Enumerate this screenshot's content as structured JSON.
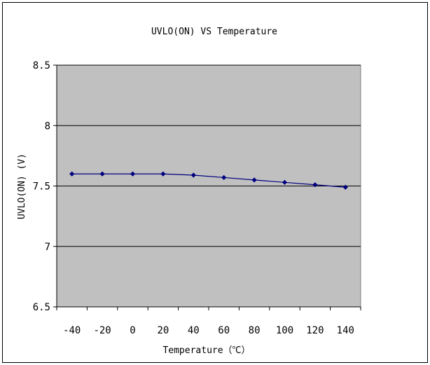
{
  "chart_data": {
    "type": "line",
    "title": "UVLO(ON) VS Temperature",
    "xlabel": "Temperature（℃）",
    "ylabel": "UVLO(ON) (V)",
    "categories": [
      "-40",
      "-20",
      "0",
      "20",
      "40",
      "60",
      "80",
      "100",
      "120",
      "140"
    ],
    "series": [
      {
        "values": [
          7.6,
          7.6,
          7.6,
          7.6,
          7.59,
          7.57,
          7.55,
          7.53,
          7.51,
          7.49
        ]
      }
    ],
    "y_ticks": [
      "6.5",
      "7",
      "7.5",
      "8",
      "8.5"
    ],
    "ylim": [
      6.5,
      8.5
    ],
    "grid": true,
    "legend": "none",
    "colors": {
      "plot_background": "#c0c0c0",
      "line": "#000080",
      "marker": "#000080",
      "gridline": "#000000"
    },
    "marker": "diamond-icon"
  }
}
